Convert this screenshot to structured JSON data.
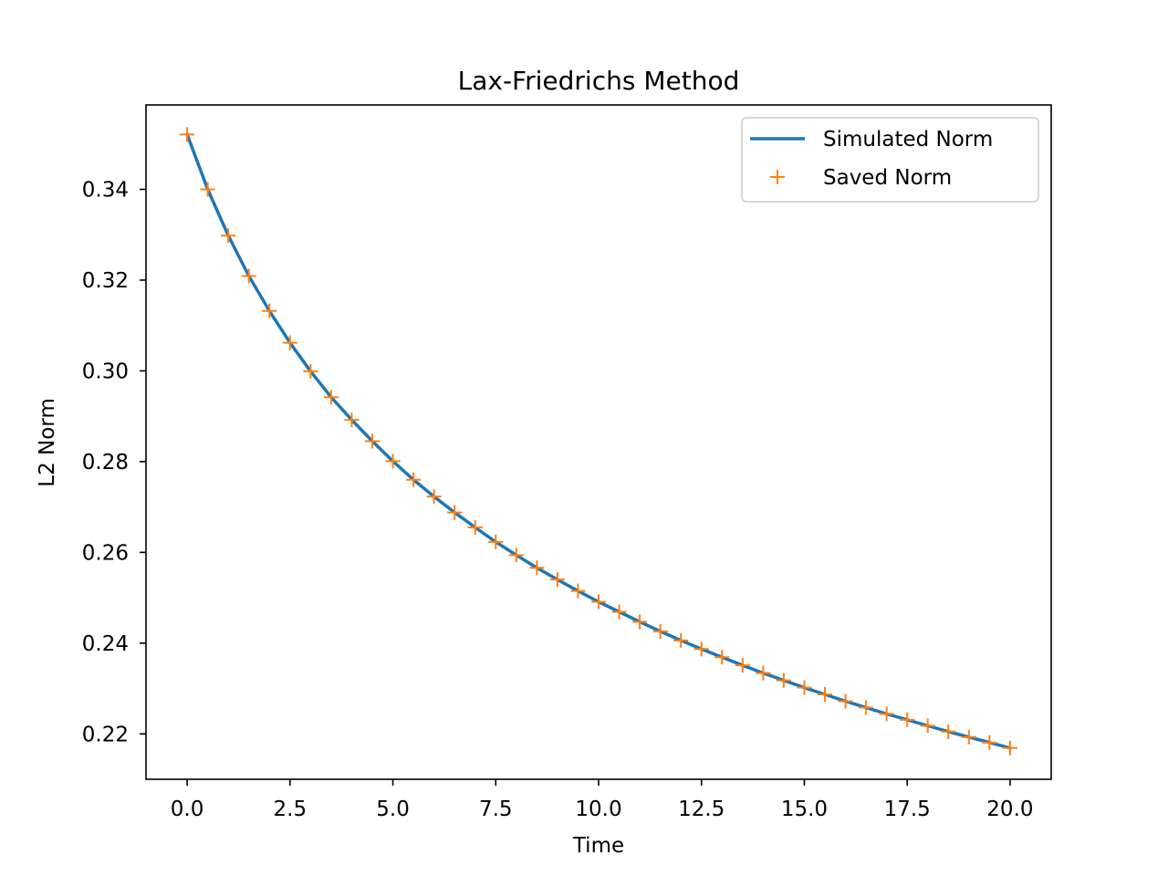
{
  "chart_data": {
    "type": "line",
    "title": "Lax-Friedrichs Method",
    "xlabel": "Time",
    "ylabel": "L2 Norm",
    "xlim": [
      -1.0,
      21.0
    ],
    "ylim": [
      0.21,
      0.3586
    ],
    "x_ticks": [
      0.0,
      2.5,
      5.0,
      7.5,
      10.0,
      12.5,
      15.0,
      17.5,
      20.0
    ],
    "x_tick_labels": [
      "0.0",
      "2.5",
      "5.0",
      "7.5",
      "10.0",
      "12.5",
      "15.0",
      "17.5",
      "20.0"
    ],
    "y_ticks": [
      0.22,
      0.24,
      0.26,
      0.28,
      0.3,
      0.32,
      0.34
    ],
    "y_tick_labels": [
      "0.22",
      "0.24",
      "0.26",
      "0.28",
      "0.30",
      "0.32",
      "0.34"
    ],
    "grid": false,
    "legend_position": "upper right",
    "series": [
      {
        "name": "Simulated Norm",
        "style": "line",
        "color": "#1f77b4",
        "x": [
          0.0,
          0.5,
          1.0,
          1.5,
          2.0,
          2.5,
          3.0,
          3.5,
          4.0,
          4.5,
          5.0,
          5.5,
          6.0,
          6.5,
          7.0,
          7.5,
          8.0,
          8.5,
          9.0,
          9.5,
          10.0,
          10.5,
          11.0,
          11.5,
          12.0,
          12.5,
          13.0,
          13.5,
          14.0,
          14.5,
          15.0,
          15.5,
          16.0,
          16.5,
          17.0,
          17.5,
          18.0,
          18.5,
          19.0,
          19.5,
          20.0
        ],
        "y": [
          0.3521,
          0.34,
          0.3298,
          0.3209,
          0.3132,
          0.3062,
          0.2999,
          0.2942,
          0.2892,
          0.2845,
          0.2801,
          0.276,
          0.2723,
          0.2688,
          0.2655,
          0.2623,
          0.2594,
          0.2566,
          0.254,
          0.2515,
          0.2491,
          0.2469,
          0.2447,
          0.2426,
          0.2406,
          0.2387,
          0.2369,
          0.2351,
          0.2334,
          0.2318,
          0.2302,
          0.2287,
          0.2272,
          0.2258,
          0.2244,
          0.2231,
          0.2218,
          0.2205,
          0.2193,
          0.2181,
          0.2169
        ]
      },
      {
        "name": "Saved Norm",
        "style": "plus-marker",
        "color": "#ff7f0e",
        "x": [
          0.0,
          0.5,
          1.0,
          1.5,
          2.0,
          2.5,
          3.0,
          3.5,
          4.0,
          4.5,
          5.0,
          5.5,
          6.0,
          6.5,
          7.0,
          7.5,
          8.0,
          8.5,
          9.0,
          9.5,
          10.0,
          10.5,
          11.0,
          11.5,
          12.0,
          12.5,
          13.0,
          13.5,
          14.0,
          14.5,
          15.0,
          15.5,
          16.0,
          16.5,
          17.0,
          17.5,
          18.0,
          18.5,
          19.0,
          19.5,
          20.0
        ],
        "y": [
          0.3521,
          0.34,
          0.3298,
          0.3209,
          0.3132,
          0.3062,
          0.2999,
          0.2942,
          0.2892,
          0.2845,
          0.2801,
          0.276,
          0.2723,
          0.2688,
          0.2655,
          0.2623,
          0.2594,
          0.2566,
          0.254,
          0.2515,
          0.2491,
          0.2469,
          0.2447,
          0.2426,
          0.2406,
          0.2387,
          0.2369,
          0.2351,
          0.2334,
          0.2318,
          0.2302,
          0.2287,
          0.2272,
          0.2258,
          0.2244,
          0.2231,
          0.2218,
          0.2205,
          0.2193,
          0.2181,
          0.2169
        ]
      }
    ]
  }
}
